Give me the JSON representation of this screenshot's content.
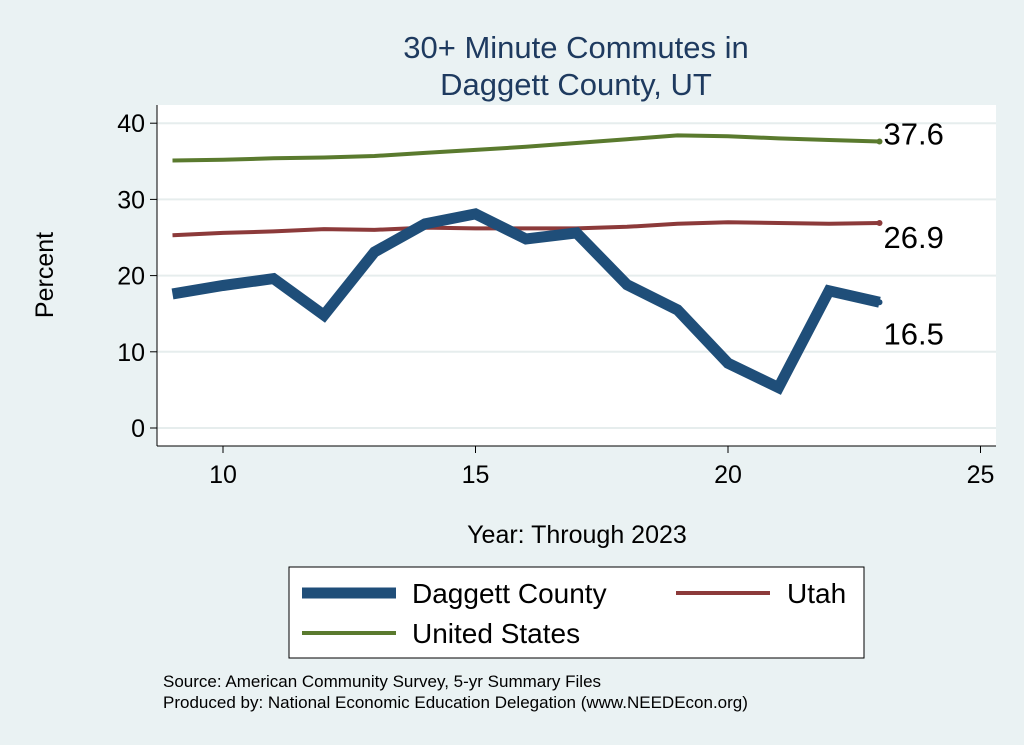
{
  "chart_data": {
    "type": "line",
    "title_lines": [
      "30+ Minute Commutes in",
      "Daggett County, UT"
    ],
    "xlabel": "Year: Through 2023",
    "ylabel": "Percent",
    "xlim": [
      9,
      25
    ],
    "ylim": [
      -2,
      42
    ],
    "x_ticks": [
      10,
      15,
      20,
      25
    ],
    "y_ticks": [
      0,
      10,
      20,
      30,
      40
    ],
    "grid": "horizontal",
    "legend_position": "bottom",
    "series": [
      {
        "name": "Daggett County",
        "color": "#1f4e79",
        "line_weight": "thick",
        "x": [
          9,
          10,
          11,
          12,
          13,
          14,
          15,
          16,
          17,
          18,
          19,
          20,
          21,
          22,
          23
        ],
        "values": [
          17.6,
          18.7,
          19.6,
          14.8,
          23.1,
          26.8,
          28.1,
          24.8,
          25.6,
          18.8,
          15.5,
          8.5,
          5.3,
          18.0,
          16.5
        ],
        "end_label": "16.5"
      },
      {
        "name": "Utah",
        "color": "#8c3a3a",
        "line_weight": "medium",
        "x": [
          9,
          10,
          11,
          12,
          13,
          14,
          15,
          16,
          17,
          18,
          19,
          20,
          21,
          22,
          23
        ],
        "values": [
          25.3,
          25.6,
          25.8,
          26.1,
          26.0,
          26.3,
          26.2,
          26.2,
          26.2,
          26.4,
          26.8,
          27.0,
          26.9,
          26.8,
          26.9
        ],
        "end_label": "26.9"
      },
      {
        "name": "United States",
        "color": "#5a7a2e",
        "line_weight": "medium",
        "x": [
          9,
          10,
          11,
          12,
          13,
          14,
          15,
          16,
          17,
          18,
          19,
          20,
          21,
          22,
          23
        ],
        "values": [
          35.1,
          35.2,
          35.4,
          35.5,
          35.7,
          36.1,
          36.5,
          36.9,
          37.4,
          37.9,
          38.4,
          38.3,
          38.0,
          37.8,
          37.6
        ],
        "end_label": "37.6"
      }
    ]
  },
  "footer": {
    "source": "Source: American Community Survey, 5-yr Summary Files",
    "produced": "Produced by: National Economic Education Delegation (www.NEEDEcon.org)"
  }
}
